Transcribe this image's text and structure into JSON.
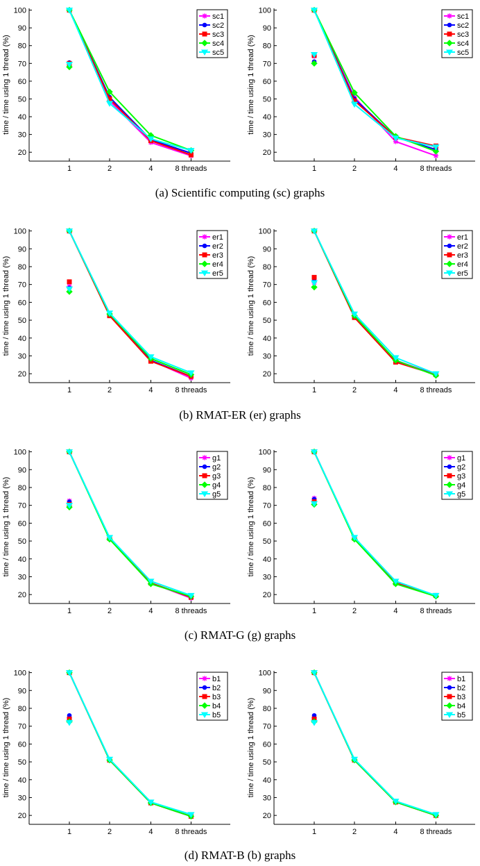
{
  "figure": {
    "captions": [
      "(a) Scientific computing (sc) graphs",
      "(b) RMAT-ER (er) graphs",
      "(c) RMAT-G (g) graphs",
      "(d) RMAT-B (b) graphs"
    ]
  },
  "style": {
    "series_colors": [
      "#ff00ff",
      "#0000ff",
      "#ff0000",
      "#00ff00",
      "#00ffff"
    ],
    "series_markers": [
      "asterisk",
      "dot",
      "square",
      "diamond",
      "triangle-down"
    ]
  },
  "chart_data": [
    {
      "type": "line",
      "panel": "a-left",
      "categories": [
        "1",
        "2",
        "4",
        "8 threads"
      ],
      "ylabel": "time / time using 1 thread (%)",
      "ylim": [
        15,
        101
      ],
      "yticks": [
        20,
        30,
        40,
        50,
        60,
        70,
        80,
        90,
        100
      ],
      "legend": "top-right",
      "series": [
        {
          "name": "sc1",
          "values": [
            100,
            49,
            25.5,
            18
          ],
          "single_thread_marker": 70
        },
        {
          "name": "sc2",
          "values": [
            100,
            51,
            27,
            19.5
          ],
          "single_thread_marker": 70.5
        },
        {
          "name": "sc3",
          "values": [
            100,
            50,
            26.5,
            18.5
          ],
          "single_thread_marker": 70
        },
        {
          "name": "sc4",
          "values": [
            100,
            54,
            29.5,
            21
          ],
          "single_thread_marker": 68
        },
        {
          "name": "sc5",
          "values": [
            100,
            47.5,
            27.5,
            21
          ],
          "single_thread_marker": 69.5
        }
      ]
    },
    {
      "type": "line",
      "panel": "a-right",
      "categories": [
        "1",
        "2",
        "4",
        "8 threads"
      ],
      "ylabel": "time / time using 1 thread (%)",
      "ylim": [
        15,
        101
      ],
      "yticks": [
        20,
        30,
        40,
        50,
        60,
        70,
        80,
        90,
        100
      ],
      "legend": "top-right",
      "series": [
        {
          "name": "sc1",
          "values": [
            100,
            51,
            26,
            18
          ],
          "single_thread_marker": 74
        },
        {
          "name": "sc2",
          "values": [
            100,
            50,
            28.5,
            21.5
          ],
          "single_thread_marker": 71
        },
        {
          "name": "sc3",
          "values": [
            100,
            49,
            28.5,
            23.5
          ],
          "single_thread_marker": 74.5
        },
        {
          "name": "sc4",
          "values": [
            100,
            53.5,
            29,
            20.5
          ],
          "single_thread_marker": 70
        },
        {
          "name": "sc5",
          "values": [
            100,
            47,
            28,
            23
          ],
          "single_thread_marker": 75
        }
      ]
    },
    {
      "type": "line",
      "panel": "b-left",
      "categories": [
        "1",
        "2",
        "4",
        "8 threads"
      ],
      "ylabel": "time / time using 1 thread (%)",
      "ylim": [
        15,
        101
      ],
      "yticks": [
        20,
        30,
        40,
        50,
        60,
        70,
        80,
        90,
        100
      ],
      "legend": "top-right",
      "series": [
        {
          "name": "er1",
          "values": [
            100,
            53,
            27.5,
            17.5
          ],
          "single_thread_marker": 69
        },
        {
          "name": "er2",
          "values": [
            100,
            53,
            27.5,
            18.5
          ],
          "single_thread_marker": 68
        },
        {
          "name": "er3",
          "values": [
            100,
            52.5,
            27,
            18.5
          ],
          "single_thread_marker": 71.5
        },
        {
          "name": "er4",
          "values": [
            100,
            53.5,
            28.5,
            19.5
          ],
          "single_thread_marker": 66
        },
        {
          "name": "er5",
          "values": [
            100,
            54,
            29.5,
            20.5
          ],
          "single_thread_marker": 67.5
        }
      ]
    },
    {
      "type": "line",
      "panel": "b-right",
      "categories": [
        "1",
        "2",
        "4",
        "8 threads"
      ],
      "ylabel": "time / time using 1 thread (%)",
      "ylim": [
        15,
        101
      ],
      "yticks": [
        20,
        30,
        40,
        50,
        60,
        70,
        80,
        90,
        100
      ],
      "legend": "top-right",
      "series": [
        {
          "name": "er1",
          "values": [
            100,
            52,
            27.5,
            19.5
          ],
          "single_thread_marker": 71
        },
        {
          "name": "er2",
          "values": [
            100,
            52,
            27,
            19.5
          ],
          "single_thread_marker": 72
        },
        {
          "name": "er3",
          "values": [
            100,
            51.5,
            26.5,
            19.5
          ],
          "single_thread_marker": 74
        },
        {
          "name": "er4",
          "values": [
            100,
            52.5,
            27.5,
            19
          ],
          "single_thread_marker": 68.5
        },
        {
          "name": "er5",
          "values": [
            100,
            53.5,
            29,
            20
          ],
          "single_thread_marker": 71
        }
      ]
    },
    {
      "type": "line",
      "panel": "c-left",
      "categories": [
        "1",
        "2",
        "4",
        "8 threads"
      ],
      "ylabel": "time / time using 1 thread (%)",
      "ylim": [
        15,
        101
      ],
      "yticks": [
        20,
        30,
        40,
        50,
        60,
        70,
        80,
        90,
        100
      ],
      "legend": "top-right",
      "series": [
        {
          "name": "g1",
          "values": [
            100,
            51.5,
            26.5,
            18
          ],
          "single_thread_marker": 72.5
        },
        {
          "name": "g2",
          "values": [
            100,
            51.5,
            26.5,
            18.5
          ],
          "single_thread_marker": 72
        },
        {
          "name": "g3",
          "values": [
            100,
            51.5,
            26.5,
            18.5
          ],
          "single_thread_marker": 70.5
        },
        {
          "name": "g4",
          "values": [
            100,
            51,
            26,
            19
          ],
          "single_thread_marker": 69
        },
        {
          "name": "g5",
          "values": [
            100,
            52,
            27.5,
            19.5
          ],
          "single_thread_marker": 70
        }
      ]
    },
    {
      "type": "line",
      "panel": "c-right",
      "categories": [
        "1",
        "2",
        "4",
        "8 threads"
      ],
      "ylabel": "time / time using 1 thread (%)",
      "ylim": [
        15,
        101
      ],
      "yticks": [
        20,
        30,
        40,
        50,
        60,
        70,
        80,
        90,
        100
      ],
      "legend": "top-right",
      "series": [
        {
          "name": "g1",
          "values": [
            100,
            51.5,
            27,
            19.5
          ],
          "single_thread_marker": 74
        },
        {
          "name": "g2",
          "values": [
            100,
            51.5,
            26.5,
            19
          ],
          "single_thread_marker": 73.5
        },
        {
          "name": "g3",
          "values": [
            100,
            51.5,
            26.5,
            19.5
          ],
          "single_thread_marker": 72
        },
        {
          "name": "g4",
          "values": [
            100,
            51,
            26,
            19
          ],
          "single_thread_marker": 70.5
        },
        {
          "name": "g5",
          "values": [
            100,
            52,
            27.5,
            19.5
          ],
          "single_thread_marker": 71
        }
      ]
    },
    {
      "type": "line",
      "panel": "d-left",
      "categories": [
        "1",
        "2",
        "4",
        "8 threads"
      ],
      "ylabel": "time / time using 1 thread (%)",
      "ylim": [
        15,
        101
      ],
      "yticks": [
        20,
        30,
        40,
        50,
        60,
        70,
        80,
        90,
        100
      ],
      "legend": "top-right",
      "series": [
        {
          "name": "b1",
          "values": [
            100,
            51,
            27,
            19.5
          ],
          "single_thread_marker": 75
        },
        {
          "name": "b2",
          "values": [
            100,
            51,
            27,
            19.5
          ],
          "single_thread_marker": 76
        },
        {
          "name": "b3",
          "values": [
            100,
            51,
            27,
            19.5
          ],
          "single_thread_marker": 74
        },
        {
          "name": "b4",
          "values": [
            100,
            51,
            27,
            19.5
          ],
          "single_thread_marker": 72.5
        },
        {
          "name": "b5",
          "values": [
            100,
            51.5,
            27.5,
            20.5
          ],
          "single_thread_marker": 72
        }
      ]
    },
    {
      "type": "line",
      "panel": "d-right",
      "categories": [
        "1",
        "2",
        "4",
        "8 threads"
      ],
      "ylabel": "time / time using 1 thread (%)",
      "ylim": [
        15,
        101
      ],
      "yticks": [
        20,
        30,
        40,
        50,
        60,
        70,
        80,
        90,
        100
      ],
      "legend": "top-right",
      "series": [
        {
          "name": "b1",
          "values": [
            100,
            51,
            27.5,
            20
          ],
          "single_thread_marker": 75
        },
        {
          "name": "b2",
          "values": [
            100,
            51,
            27.5,
            20
          ],
          "single_thread_marker": 76
        },
        {
          "name": "b3",
          "values": [
            100,
            51,
            27.5,
            20
          ],
          "single_thread_marker": 74
        },
        {
          "name": "b4",
          "values": [
            100,
            51,
            27.5,
            20
          ],
          "single_thread_marker": 72.5
        },
        {
          "name": "b5",
          "values": [
            100,
            51.5,
            28,
            20.5
          ],
          "single_thread_marker": 72
        }
      ]
    }
  ]
}
